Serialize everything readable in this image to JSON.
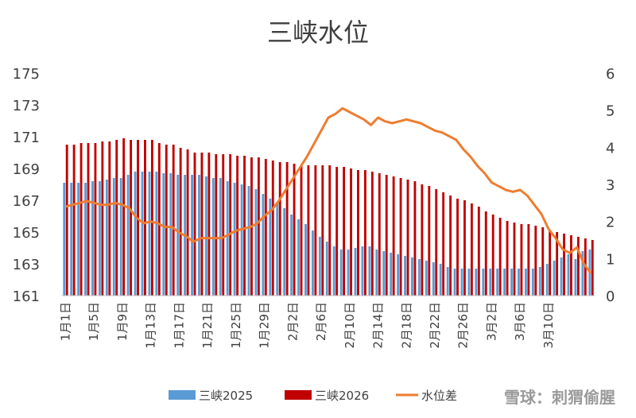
{
  "chart_data": {
    "type": "bar",
    "title": "三峡水位",
    "y_left": {
      "min": 161,
      "max": 175,
      "ticks": [
        175,
        173,
        171,
        169,
        167,
        165,
        163,
        161
      ]
    },
    "y_right": {
      "min": 0,
      "max": 6,
      "ticks": [
        6,
        5,
        4,
        3,
        2,
        1,
        0
      ]
    },
    "x_tick_labels": [
      "1月1日",
      "1月5日",
      "1月9日",
      "1月13日",
      "1月17日",
      "1月21日",
      "1月25日",
      "1月29日",
      "2月2日",
      "2月6日",
      "2月10日",
      "2月14日",
      "2月18日",
      "2月22日",
      "2月26日",
      "3月2日",
      "3月6日",
      "3月10日"
    ],
    "grid": false,
    "legend_position": "bottom",
    "series": [
      {
        "name": "三峡2025",
        "axis": "left",
        "kind": "bar",
        "color": "#5b9bd5",
        "values": [
          168.1,
          168.1,
          168.1,
          168.1,
          168.2,
          168.2,
          168.3,
          168.4,
          168.4,
          168.6,
          168.8,
          168.8,
          168.8,
          168.8,
          168.7,
          168.7,
          168.6,
          168.6,
          168.6,
          168.6,
          168.5,
          168.4,
          168.4,
          168.2,
          168.1,
          168.0,
          167.9,
          167.7,
          167.4,
          167.1,
          166.8,
          166.5,
          166.1,
          165.8,
          165.5,
          165.1,
          164.7,
          164.4,
          164.1,
          163.9,
          163.9,
          164.0,
          164.1,
          164.1,
          163.9,
          163.8,
          163.7,
          163.6,
          163.5,
          163.4,
          163.3,
          163.2,
          163.1,
          163.0,
          162.8,
          162.7,
          162.7,
          162.7,
          162.7,
          162.7,
          162.7,
          162.7,
          162.7,
          162.7,
          162.7,
          162.7,
          162.7,
          162.8,
          163.0,
          163.2,
          163.4,
          163.6,
          163.3,
          163.8,
          163.9
        ]
      },
      {
        "name": "三峡2026",
        "axis": "left",
        "kind": "bar",
        "color": "#c00000",
        "values": [
          170.5,
          170.5,
          170.6,
          170.6,
          170.6,
          170.7,
          170.7,
          170.8,
          170.9,
          170.8,
          170.8,
          170.8,
          170.8,
          170.6,
          170.5,
          170.5,
          170.3,
          170.2,
          170.0,
          170.0,
          170.0,
          169.9,
          169.9,
          169.9,
          169.8,
          169.8,
          169.7,
          169.7,
          169.6,
          169.5,
          169.4,
          169.4,
          169.3,
          169.2,
          169.2,
          169.2,
          169.2,
          169.2,
          169.1,
          169.1,
          169.0,
          168.9,
          168.9,
          168.8,
          168.7,
          168.6,
          168.5,
          168.4,
          168.3,
          168.2,
          168.0,
          167.9,
          167.7,
          167.5,
          167.3,
          167.1,
          167.0,
          166.8,
          166.6,
          166.3,
          166.1,
          165.9,
          165.7,
          165.6,
          165.5,
          165.5,
          165.4,
          165.3,
          165.1,
          165.0,
          164.9,
          164.8,
          164.7,
          164.6,
          164.5
        ]
      },
      {
        "name": "水位差",
        "axis": "right",
        "kind": "line",
        "color": "#ed7d31",
        "values": [
          2.4,
          2.45,
          2.5,
          2.55,
          2.5,
          2.45,
          2.45,
          2.5,
          2.45,
          2.35,
          2.1,
          1.95,
          2.0,
          1.95,
          1.85,
          1.85,
          1.7,
          1.6,
          1.45,
          1.55,
          1.55,
          1.55,
          1.55,
          1.65,
          1.75,
          1.8,
          1.85,
          1.95,
          2.15,
          2.3,
          2.55,
          2.85,
          3.15,
          3.45,
          3.75,
          4.1,
          4.45,
          4.8,
          4.9,
          5.05,
          4.95,
          4.85,
          4.75,
          4.6,
          4.8,
          4.7,
          4.65,
          4.7,
          4.75,
          4.7,
          4.65,
          4.55,
          4.45,
          4.4,
          4.3,
          4.2,
          3.95,
          3.75,
          3.5,
          3.3,
          3.05,
          2.95,
          2.85,
          2.8,
          2.85,
          2.7,
          2.45,
          2.2,
          1.8,
          1.55,
          1.25,
          1.15,
          1.3,
          0.85,
          0.6
        ]
      }
    ]
  },
  "watermark": "雪球：刺猬偷腥"
}
